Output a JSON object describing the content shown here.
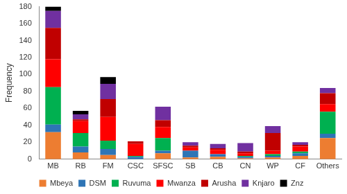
{
  "chart_data": {
    "type": "bar",
    "stacked": true,
    "y_label": "Frequency",
    "categories": [
      "MB",
      "RB",
      "FM",
      "CSC",
      "SFSC",
      "SB",
      "CB",
      "CN",
      "WP",
      "CF",
      "Others"
    ],
    "series": [
      {
        "name": "Mbeya",
        "color": "#ed7d31",
        "values": [
          32,
          8,
          5,
          0,
          7,
          2,
          3,
          1,
          2,
          4,
          25
        ]
      },
      {
        "name": "DSM",
        "color": "#2e75b6",
        "values": [
          9,
          7,
          7,
          3,
          3,
          8,
          3,
          2,
          2,
          3,
          5
        ]
      },
      {
        "name": "Ruvuma",
        "color": "#00b050",
        "values": [
          44,
          16,
          10,
          1,
          15,
          0,
          0,
          1,
          2,
          2,
          26
        ]
      },
      {
        "name": "Mwanza",
        "color": "#ff0000",
        "values": [
          33,
          14,
          28,
          14,
          13,
          4,
          5,
          3,
          4,
          6,
          9
        ]
      },
      {
        "name": "Arusha",
        "color": "#c00000",
        "values": [
          37,
          2,
          21,
          3,
          8,
          2,
          2,
          2,
          21,
          2,
          13
        ]
      },
      {
        "name": "Knjaro",
        "color": "#7030a0",
        "values": [
          20,
          6,
          18,
          0,
          16,
          4,
          5,
          10,
          8,
          3,
          6
        ]
      },
      {
        "name": "Znz",
        "color": "#000000",
        "values": [
          5,
          4,
          8,
          0,
          0,
          0,
          0,
          0,
          0,
          0,
          0
        ]
      }
    ],
    "ylim": [
      0,
      180
    ],
    "yticks": [
      0,
      20,
      40,
      60,
      80,
      100,
      120,
      140,
      160,
      180
    ],
    "grid": false,
    "legend": "bottom"
  }
}
